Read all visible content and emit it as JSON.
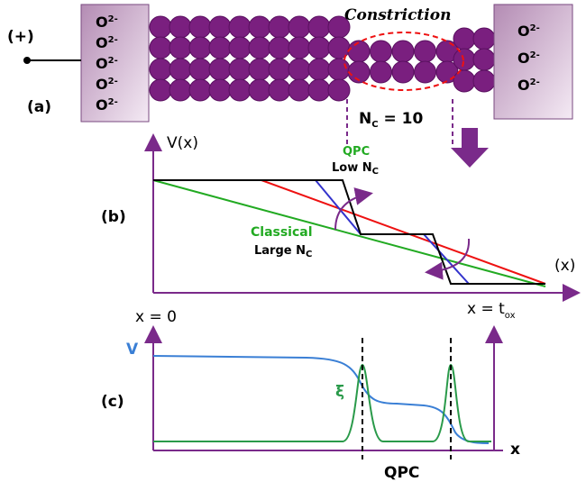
{
  "panel_a": {
    "label": "(a)",
    "polarity": "(+)",
    "left_ions": [
      {
        "base": "O",
        "sup": "2-"
      },
      {
        "base": "O",
        "sup": "2-"
      },
      {
        "base": "O",
        "sup": "2-"
      },
      {
        "base": "O",
        "sup": "2-"
      },
      {
        "base": "O",
        "sup": "2-"
      }
    ],
    "right_ions": [
      {
        "base": "O",
        "sup": "2-"
      },
      {
        "base": "O",
        "sup": "2-"
      },
      {
        "base": "O",
        "sup": "2-"
      }
    ],
    "constriction": "Constriction",
    "nc": {
      "base": "N",
      "sub": "C",
      "tail": " = 10"
    }
  },
  "panel_b": {
    "label": "(b)",
    "y_axis": "V(x)",
    "x_axis": "(x)",
    "qpc": {
      "title": "QPC",
      "desc": {
        "base": "Low N",
        "sub": "C"
      }
    },
    "classical": {
      "title": "Classical",
      "desc": {
        "base": "Large N",
        "sub": "C"
      }
    },
    "x_start": "x = 0",
    "x_end": {
      "base": "x = t",
      "sub": "ox"
    }
  },
  "panel_c": {
    "label": "(c)",
    "v_label": "V",
    "xi_label": "ξ",
    "x_axis": "x",
    "qpc": "QPC"
  }
}
